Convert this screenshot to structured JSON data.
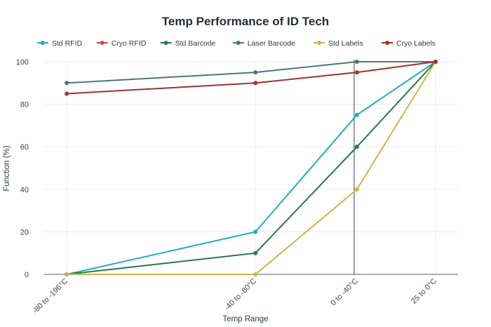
{
  "chart_data": {
    "type": "line",
    "title": "Temp Performance of ID Tech",
    "xlabel": "Temp Range",
    "ylabel": "Function (%)",
    "categories": [
      "-80 to -196°C",
      "-40 to -80°C",
      "0 to -40°C",
      "25 to 0°C"
    ],
    "x_positions": [
      -166,
      -57,
      1.6,
      47
    ],
    "xlim": [
      -179,
      60
    ],
    "ylim": [
      0,
      100
    ],
    "yticks": [
      0,
      20,
      40,
      60,
      80,
      100
    ],
    "grid": true,
    "legend_position": "top-center",
    "reference_line_x": 0,
    "series": [
      {
        "name": "Std RFID",
        "color": "#1fafc0",
        "values": [
          0,
          20,
          75,
          100
        ]
      },
      {
        "name": "Cryo RFID",
        "color": "#d24646",
        "values": [
          null,
          null,
          null,
          100
        ]
      },
      {
        "name": "Std Barcode",
        "color": "#257a46",
        "values": [
          0,
          10,
          60,
          100
        ]
      },
      {
        "name": "Laser Barcode",
        "color": "#4c7582",
        "values": [
          90,
          95,
          100,
          100
        ]
      },
      {
        "name": "Std Labels",
        "color": "#d4b34b",
        "values": [
          0,
          0,
          40,
          100
        ]
      },
      {
        "name": "Cryo Labels",
        "color": "#a13131",
        "values": [
          85,
          90,
          95,
          100
        ]
      }
    ]
  }
}
